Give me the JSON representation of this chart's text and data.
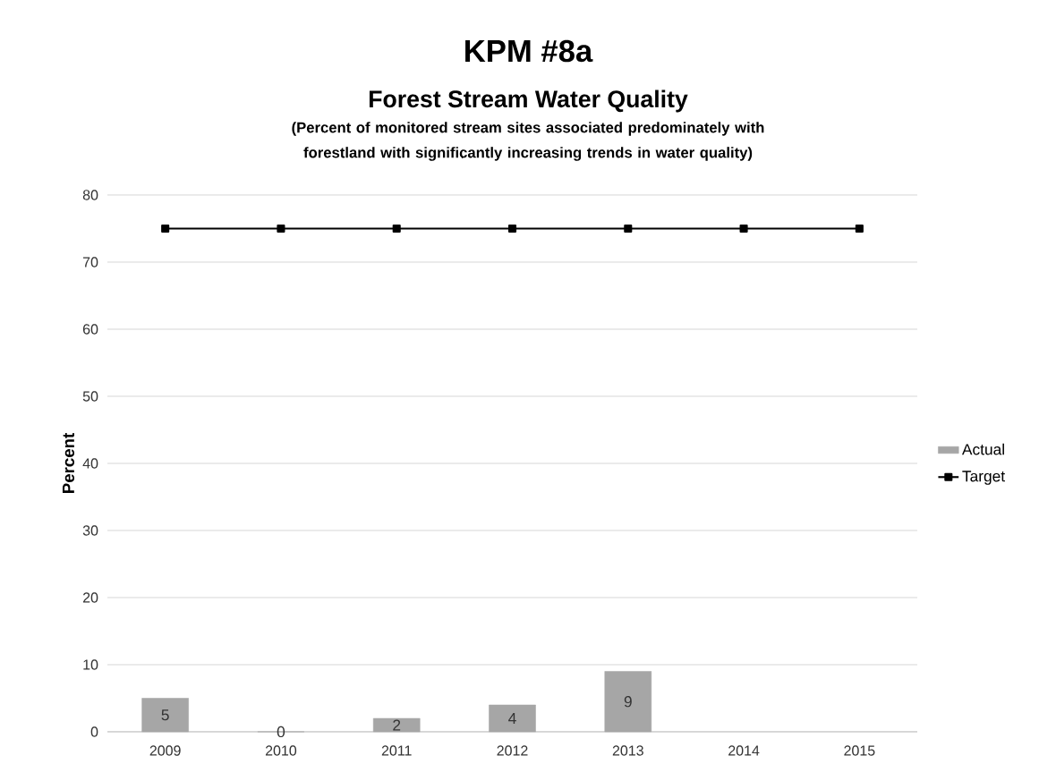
{
  "chart_data": {
    "type": "bar",
    "title": "KPM #8a",
    "subtitle": "Forest Stream Water Quality",
    "ylabel": "Percent",
    "annotations": [
      "(Percent of monitored stream sites associated predominately with forestland with significantly increasing trends in water quality)"
    ],
    "categories": [
      "2009",
      "2010",
      "2011",
      "2012",
      "2013",
      "2014",
      "2015"
    ],
    "series": [
      {
        "name": "Actual",
        "color": "#a6a6a6",
        "values": [
          5,
          0,
          2,
          4,
          9,
          null,
          null
        ],
        "value_labels": [
          "5",
          "0",
          "2",
          "4",
          "9",
          null,
          null
        ]
      },
      {
        "name": "Target",
        "type": "line",
        "color": "#000000",
        "marker": "square",
        "values": [
          75,
          75,
          75,
          75,
          75,
          75,
          75
        ]
      }
    ],
    "ylim": [
      0,
      80
    ],
    "yticks": [
      0,
      10,
      20,
      30,
      40,
      50,
      60,
      70,
      80
    ],
    "grid": "y",
    "legend": "right"
  }
}
